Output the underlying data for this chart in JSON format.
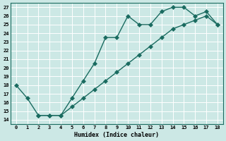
{
  "xlabel": "Humidex (Indice chaleur)",
  "background_color": "#cce8e5",
  "line_color": "#1a6b60",
  "grid_color": "#ffffff",
  "xlim": [
    -0.5,
    18.5
  ],
  "ylim": [
    13.5,
    27.5
  ],
  "xticks": [
    0,
    1,
    2,
    3,
    4,
    5,
    6,
    7,
    8,
    9,
    10,
    11,
    12,
    13,
    14,
    15,
    16,
    17,
    18
  ],
  "yticks": [
    14,
    15,
    16,
    17,
    18,
    19,
    20,
    21,
    22,
    23,
    24,
    25,
    26,
    27
  ],
  "line1_x": [
    0,
    1,
    2,
    3,
    4,
    5,
    6,
    7,
    8,
    9,
    10,
    11,
    12,
    13,
    14,
    15,
    16,
    17,
    18
  ],
  "line1_y": [
    18.0,
    16.5,
    14.5,
    14.5,
    14.5,
    16.5,
    18.5,
    20.5,
    23.5,
    23.5,
    26.0,
    25.0,
    25.0,
    26.5,
    27.0,
    27.0,
    26.0,
    26.5,
    25.0
  ],
  "line2_x": [
    2,
    3,
    4,
    5,
    6,
    7,
    8,
    9,
    10,
    11,
    12,
    13,
    14,
    15,
    16,
    17,
    18
  ],
  "line2_y": [
    14.5,
    14.5,
    14.5,
    15.5,
    16.5,
    17.5,
    18.5,
    19.5,
    20.5,
    21.5,
    22.5,
    23.5,
    24.5,
    25.0,
    25.5,
    26.0,
    25.0
  ],
  "marker_size": 3,
  "line_width": 1.0
}
